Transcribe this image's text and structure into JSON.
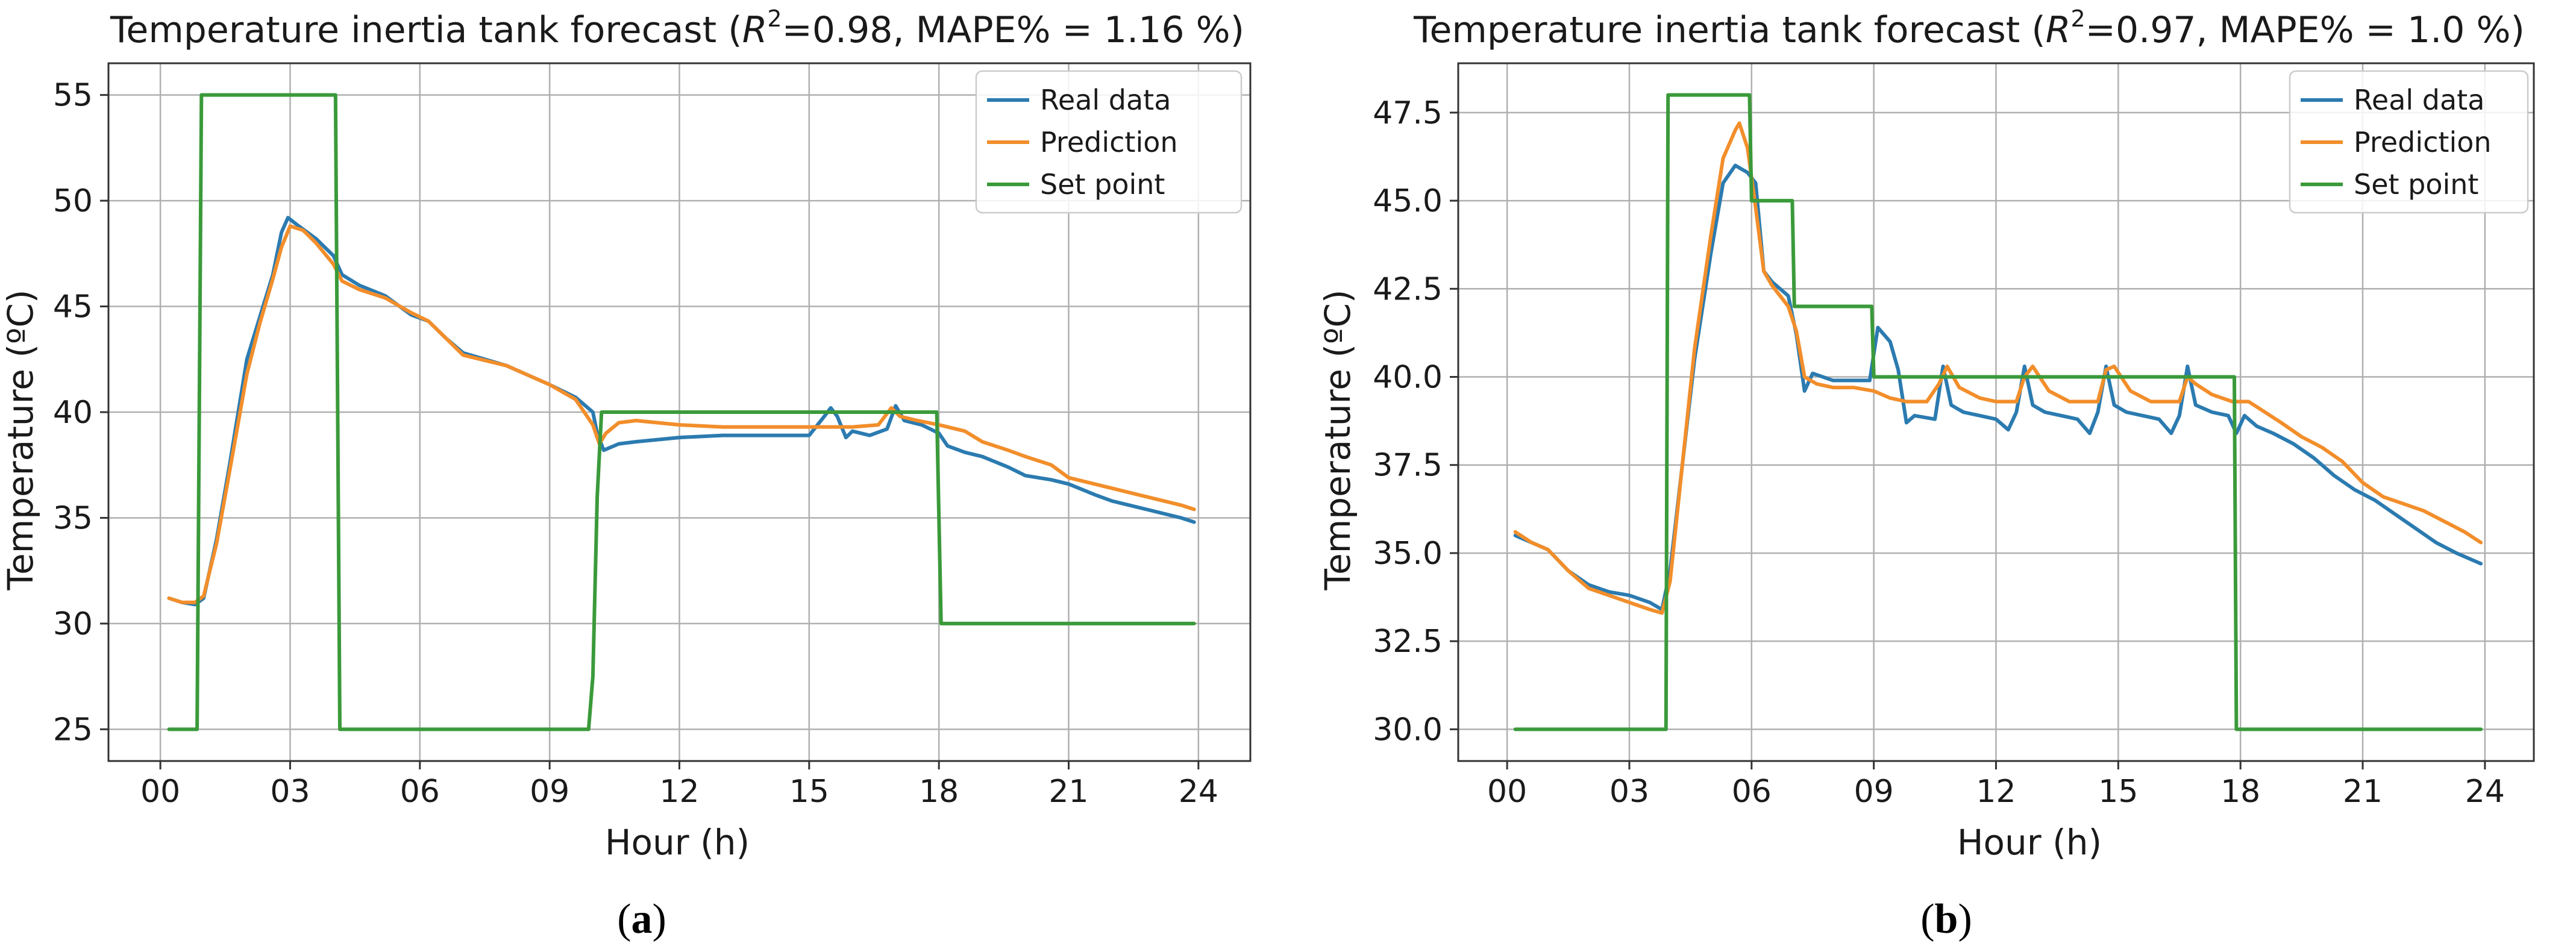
{
  "chart_data": [
    {
      "type": "line",
      "panel_label": "(a)",
      "title_prefix": "Temperature inertia tank forecast (",
      "title_r2_symbol": "R",
      "title_r2_exp": "2",
      "title_suffix": "=0.98, MAPE% = 1.16 %)",
      "xlabel": "Hour (h)",
      "ylabel": "Temperature (ºC)",
      "xlim": [
        -1.2,
        25.2
      ],
      "ylim": [
        23.5,
        56.5
      ],
      "xticks": [
        0,
        3,
        6,
        9,
        12,
        15,
        18,
        21,
        24
      ],
      "xticklabels": [
        "00",
        "03",
        "06",
        "09",
        "12",
        "15",
        "18",
        "21",
        "24"
      ],
      "yticks": [
        25,
        30,
        35,
        40,
        45,
        50,
        55
      ],
      "yticklabels": [
        "25",
        "30",
        "35",
        "40",
        "45",
        "50",
        "55"
      ],
      "grid": true,
      "legend_position": "top-right",
      "series": [
        {
          "name": "Real data",
          "color": "#2b7bb0",
          "x": [
            0.2,
            0.5,
            0.8,
            1.0,
            1.3,
            1.6,
            2.0,
            2.3,
            2.6,
            2.8,
            2.95,
            3.2,
            3.6,
            4.0,
            4.2,
            4.6,
            5.2,
            5.8,
            6.2,
            6.6,
            7.0,
            8.0,
            9.0,
            9.6,
            10.0,
            10.1,
            10.25,
            10.6,
            11.0,
            12.0,
            13.0,
            14.0,
            15.0,
            15.35,
            15.5,
            15.65,
            15.85,
            16.0,
            16.4,
            16.8,
            17.0,
            17.2,
            17.6,
            18.0,
            18.2,
            18.6,
            19.0,
            19.6,
            20.0,
            20.6,
            21.0,
            21.6,
            22.0,
            22.6,
            23.0,
            23.6,
            23.9
          ],
          "y": [
            31.2,
            31.0,
            30.9,
            31.2,
            34.0,
            37.5,
            42.5,
            44.5,
            46.5,
            48.5,
            49.2,
            48.8,
            48.2,
            47.4,
            46.5,
            46.0,
            45.5,
            44.6,
            44.3,
            43.5,
            42.8,
            42.2,
            41.3,
            40.7,
            40.0,
            39.0,
            38.2,
            38.5,
            38.6,
            38.8,
            38.9,
            38.9,
            38.9,
            39.8,
            40.2,
            39.8,
            38.8,
            39.1,
            38.9,
            39.2,
            40.3,
            39.6,
            39.4,
            39.0,
            38.4,
            38.1,
            37.9,
            37.4,
            37.0,
            36.8,
            36.6,
            36.1,
            35.8,
            35.5,
            35.3,
            35.0,
            34.8
          ]
        },
        {
          "name": "Prediction",
          "color": "#f28e2b",
          "x": [
            0.2,
            0.5,
            0.8,
            1.0,
            1.3,
            1.6,
            2.0,
            2.3,
            2.6,
            2.8,
            3.0,
            3.3,
            3.6,
            4.0,
            4.2,
            4.6,
            5.2,
            5.8,
            6.2,
            6.6,
            7.0,
            8.0,
            9.0,
            9.6,
            10.0,
            10.15,
            10.3,
            10.6,
            11.0,
            12.0,
            13.0,
            14.0,
            15.0,
            16.0,
            16.6,
            16.9,
            17.1,
            17.5,
            18.0,
            18.6,
            19.0,
            19.6,
            20.0,
            20.6,
            21.0,
            21.6,
            22.0,
            22.6,
            23.0,
            23.6,
            23.9
          ],
          "y": [
            31.2,
            31.0,
            31.0,
            31.3,
            33.8,
            37.2,
            41.8,
            44.2,
            46.3,
            47.8,
            48.8,
            48.6,
            48.0,
            47.0,
            46.2,
            45.8,
            45.4,
            44.7,
            44.3,
            43.5,
            42.7,
            42.2,
            41.3,
            40.6,
            39.4,
            38.5,
            39.0,
            39.5,
            39.6,
            39.4,
            39.3,
            39.3,
            39.3,
            39.3,
            39.4,
            40.2,
            39.8,
            39.6,
            39.4,
            39.1,
            38.6,
            38.2,
            37.9,
            37.5,
            36.9,
            36.6,
            36.4,
            36.1,
            35.9,
            35.6,
            35.4
          ]
        },
        {
          "name": "Set point",
          "color": "#3a9a3a",
          "x": [
            0.2,
            0.85,
            0.95,
            4.05,
            4.15,
            9.9,
            10.0,
            10.1,
            10.2,
            17.95,
            18.05,
            23.9
          ],
          "y": [
            25,
            25,
            55,
            55,
            25,
            25,
            27.5,
            36.0,
            40,
            40,
            30,
            30
          ]
        }
      ]
    },
    {
      "type": "line",
      "panel_label": "(b)",
      "title_prefix": "Temperature inertia tank forecast (",
      "title_r2_symbol": "R",
      "title_r2_exp": "2",
      "title_suffix": "=0.97, MAPE% = 1.0 %)",
      "xlabel": "Hour (h)",
      "ylabel": "Temperature (ºC)",
      "xlim": [
        -1.2,
        25.2
      ],
      "ylim": [
        29.1,
        48.9
      ],
      "xticks": [
        0,
        3,
        6,
        9,
        12,
        15,
        18,
        21,
        24
      ],
      "xticklabels": [
        "00",
        "03",
        "06",
        "09",
        "12",
        "15",
        "18",
        "21",
        "24"
      ],
      "yticks": [
        30.0,
        32.5,
        35.0,
        37.5,
        40.0,
        42.5,
        45.0,
        47.5
      ],
      "yticklabels": [
        "30.0",
        "32.5",
        "35.0",
        "37.5",
        "40.0",
        "42.5",
        "45.0",
        "47.5"
      ],
      "grid": true,
      "legend_position": "top-right",
      "series": [
        {
          "name": "Real data",
          "color": "#2b7bb0",
          "x": [
            0.2,
            0.6,
            1.0,
            1.5,
            2.0,
            2.5,
            3.0,
            3.5,
            3.8,
            4.0,
            4.3,
            4.6,
            5.0,
            5.3,
            5.6,
            5.9,
            6.1,
            6.3,
            6.5,
            6.9,
            7.1,
            7.3,
            7.5,
            8.0,
            8.5,
            8.9,
            9.1,
            9.4,
            9.6,
            9.8,
            10.0,
            10.5,
            10.7,
            10.9,
            11.2,
            11.6,
            12.0,
            12.3,
            12.5,
            12.7,
            12.9,
            13.2,
            13.6,
            14.0,
            14.3,
            14.5,
            14.7,
            14.9,
            15.2,
            15.6,
            16.0,
            16.3,
            16.5,
            16.7,
            16.9,
            17.3,
            17.7,
            17.9,
            18.1,
            18.4,
            18.8,
            19.3,
            19.8,
            20.3,
            20.8,
            21.3,
            21.8,
            22.3,
            22.8,
            23.3,
            23.9
          ],
          "y": [
            35.5,
            35.3,
            35.1,
            34.5,
            34.1,
            33.9,
            33.8,
            33.6,
            33.4,
            34.5,
            37.5,
            40.5,
            43.5,
            45.5,
            46.0,
            45.8,
            45.5,
            43.0,
            42.7,
            42.3,
            41.2,
            39.6,
            40.1,
            39.9,
            39.9,
            39.9,
            41.4,
            41.0,
            40.2,
            38.7,
            38.9,
            38.8,
            40.3,
            39.2,
            39.0,
            38.9,
            38.8,
            38.5,
            39.0,
            40.3,
            39.2,
            39.0,
            38.9,
            38.8,
            38.4,
            39.0,
            40.3,
            39.2,
            39.0,
            38.9,
            38.8,
            38.4,
            38.9,
            40.3,
            39.2,
            39.0,
            38.9,
            38.4,
            38.9,
            38.6,
            38.4,
            38.1,
            37.7,
            37.2,
            36.8,
            36.5,
            36.1,
            35.7,
            35.3,
            35.0,
            34.7
          ]
        },
        {
          "name": "Prediction",
          "color": "#f28e2b",
          "x": [
            0.2,
            0.6,
            1.0,
            1.5,
            2.0,
            2.5,
            3.0,
            3.5,
            3.8,
            4.0,
            4.3,
            4.6,
            5.0,
            5.3,
            5.6,
            5.7,
            5.9,
            6.1,
            6.3,
            6.5,
            6.9,
            7.1,
            7.3,
            7.6,
            8.0,
            8.5,
            9.0,
            9.4,
            9.8,
            10.3,
            10.6,
            10.8,
            11.1,
            11.6,
            12.0,
            12.5,
            12.7,
            12.9,
            13.3,
            13.8,
            14.2,
            14.5,
            14.7,
            14.9,
            15.3,
            15.8,
            16.2,
            16.5,
            16.7,
            16.9,
            17.3,
            17.8,
            18.2,
            18.6,
            19.0,
            19.5,
            20.0,
            20.5,
            21.0,
            21.5,
            22.0,
            22.5,
            23.0,
            23.5,
            23.9
          ],
          "y": [
            35.6,
            35.3,
            35.1,
            34.5,
            34.0,
            33.8,
            33.6,
            33.4,
            33.3,
            34.2,
            37.5,
            40.8,
            44.0,
            46.2,
            47.0,
            47.2,
            46.5,
            44.8,
            43.0,
            42.6,
            42.0,
            41.3,
            40.0,
            39.8,
            39.7,
            39.7,
            39.6,
            39.4,
            39.3,
            39.3,
            39.8,
            40.3,
            39.7,
            39.4,
            39.3,
            39.3,
            40.0,
            40.3,
            39.6,
            39.3,
            39.3,
            39.3,
            40.2,
            40.3,
            39.6,
            39.3,
            39.3,
            39.3,
            40.0,
            39.8,
            39.5,
            39.3,
            39.3,
            39.0,
            38.7,
            38.3,
            38.0,
            37.6,
            37.0,
            36.6,
            36.4,
            36.2,
            35.9,
            35.6,
            35.3
          ]
        },
        {
          "name": "Set point",
          "color": "#3a9a3a",
          "x": [
            0.2,
            3.9,
            3.95,
            5.95,
            6.0,
            7.0,
            7.05,
            8.95,
            9.0,
            17.85,
            17.9,
            23.9
          ],
          "y": [
            30,
            30,
            48,
            48,
            45,
            45,
            42,
            42,
            40,
            40,
            30,
            30
          ]
        }
      ]
    }
  ]
}
